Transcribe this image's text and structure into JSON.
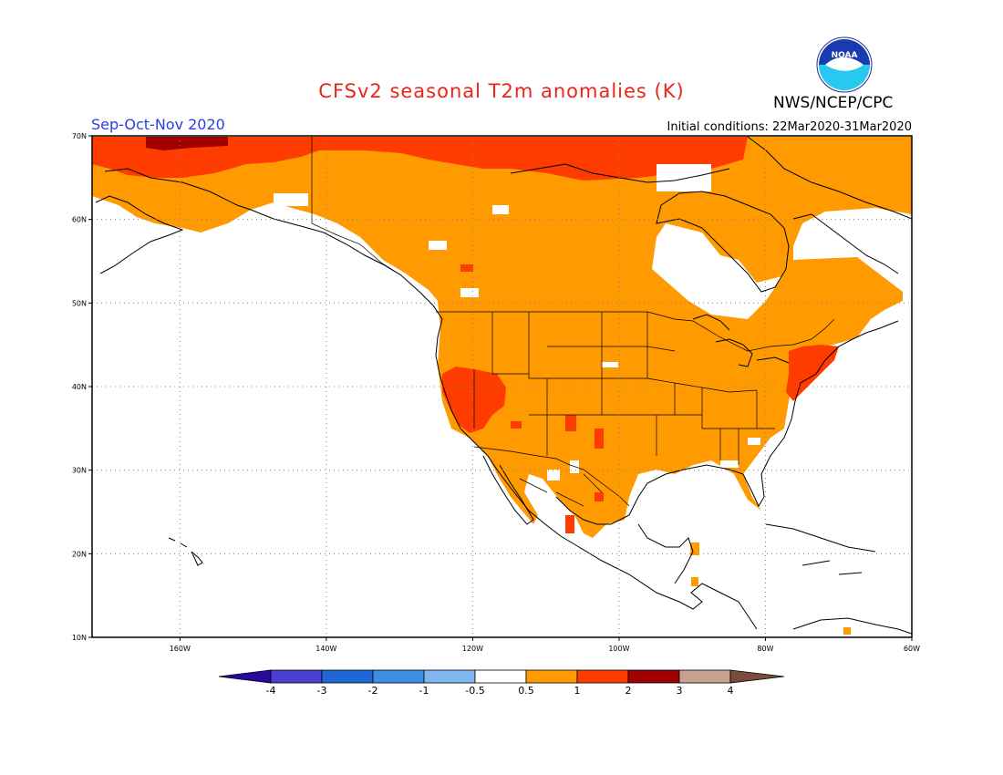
{
  "title": "CFSv2 seasonal T2m anomalies (K)",
  "agency": "NWS/NCEP/CPC",
  "logo_text": "NOAA",
  "period": "Sep-Oct-Nov 2020",
  "initial_conditions": "Initial conditions: 22Mar2020-31Mar2020",
  "map": {
    "lon_range": [
      -172,
      -60
    ],
    "lat_range": [
      10,
      70
    ],
    "lon_ticks": [
      {
        "value": -160,
        "label": "160W"
      },
      {
        "value": -140,
        "label": "140W"
      },
      {
        "value": -120,
        "label": "120W"
      },
      {
        "value": -100,
        "label": "100W"
      },
      {
        "value": -80,
        "label": "80W"
      },
      {
        "value": -60,
        "label": "60W"
      }
    ],
    "lat_ticks": [
      {
        "value": 10,
        "label": "10N"
      },
      {
        "value": 20,
        "label": "20N"
      },
      {
        "value": 30,
        "label": "30N"
      },
      {
        "value": 40,
        "label": "40N"
      },
      {
        "value": 50,
        "label": "50N"
      },
      {
        "value": 60,
        "label": "60N"
      },
      {
        "value": 70,
        "label": "70N"
      }
    ],
    "grid": true
  },
  "colorbar": {
    "labels": [
      "-4",
      "-3",
      "-2",
      "-1",
      "-0.5",
      "0.5",
      "1",
      "2",
      "3",
      "4"
    ],
    "colors": [
      "#2a0a9e",
      "#4a3fd1",
      "#1f67d6",
      "#3f8ee6",
      "#7fb6f0",
      "#ffffff",
      "#ff9a00",
      "#ff3c00",
      "#a00000",
      "#c8a090",
      "#7a4a3a"
    ]
  }
}
